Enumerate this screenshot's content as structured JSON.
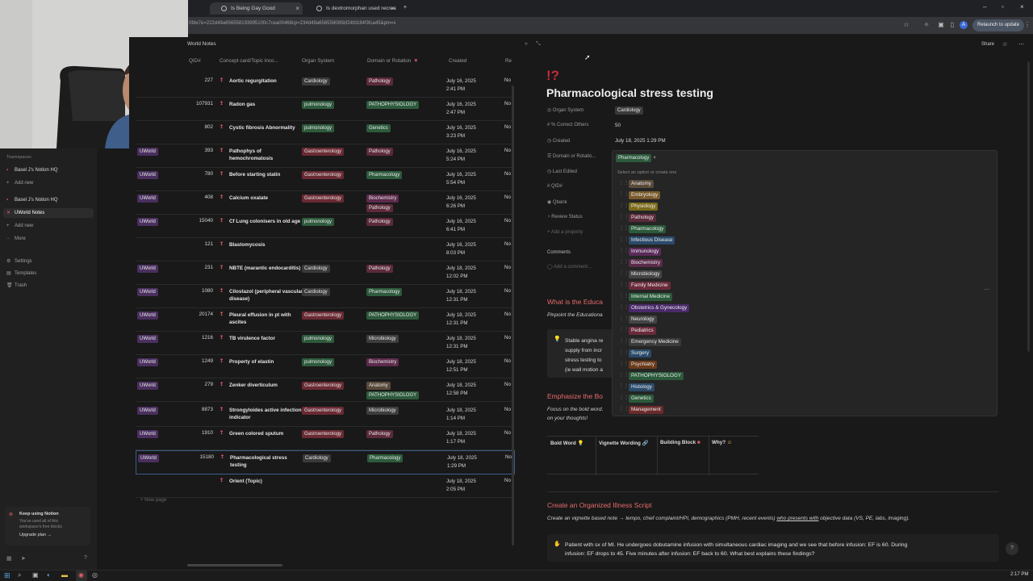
{
  "browser": {
    "tabs": [
      {
        "label": "Is Being Gay Good"
      },
      {
        "label": "Is dextromorphan used recrea"
      }
    ],
    "url": "0fde7e=222d49a656558193995100c7cea00468cp=234d49a656558085bf24fd184f3fca45&pm=s",
    "relaunch_label": "Relaunch to update"
  },
  "sidebar": {
    "teamspaces_heading": "Teamspaces",
    "items": [
      {
        "label": "Basel J's Notion HQ"
      },
      {
        "label": "Add new"
      },
      {
        "label": "Basel J's Notion HQ"
      },
      {
        "label": "UWorld Notes"
      },
      {
        "label": "Add new"
      },
      {
        "label": "More"
      },
      {
        "label": "Settings"
      },
      {
        "label": "Templates"
      },
      {
        "label": "Trash"
      }
    ],
    "upgrade": {
      "title": "Keep using Notion",
      "line1": "You've used all of this",
      "line2": "workspace's free blocks",
      "cta": "Upgrade plan →"
    }
  },
  "table": {
    "title": "World Notes",
    "columns": [
      "QID#",
      "Concept card/Topic Inco...",
      "Organ System",
      "Domain or Rotation",
      "Created",
      "Re"
    ],
    "rows": [
      {
        "source": "",
        "qid": "227",
        "concept": "Aortic regurgitation",
        "organ": "Cardiology",
        "domain": [
          "Pathology"
        ],
        "date1": "July 16, 2025",
        "date2": "2:41 PM",
        "re": "No"
      },
      {
        "source": "",
        "qid": "107931",
        "concept": "Radon gas",
        "organ": "pulmonology",
        "domain": [
          "PATHOPHYSIOLOGY"
        ],
        "date1": "July 16, 2025",
        "date2": "2:47 PM",
        "re": "No"
      },
      {
        "source": "",
        "qid": "802",
        "concept": "Cystic fibrosis Abnormality",
        "organ": "pulmonology",
        "domain": [
          "Genetics"
        ],
        "date1": "July 16, 2025",
        "date2": "3:23 PM",
        "re": "No"
      },
      {
        "source": "UWorld",
        "qid": "393",
        "concept": "Pathophys of hemochromatosis",
        "organ": "Gastroenterology",
        "domain": [
          "Pathology"
        ],
        "date1": "July 16, 2025",
        "date2": "5:24 PM",
        "re": "No"
      },
      {
        "source": "UWorld",
        "qid": "780",
        "concept": "Before starting statin",
        "organ": "Gastroenterology",
        "domain": [
          "Pharmacology"
        ],
        "date1": "July 16, 2025",
        "date2": "5:54 PM",
        "re": "No"
      },
      {
        "source": "UWorld",
        "qid": "408",
        "concept": "Calcium oxalate",
        "organ": "Gastroenterology",
        "domain": [
          "Biochemistry",
          "Pathology"
        ],
        "date1": "July 16, 2025",
        "date2": "6:26 PM",
        "re": "No"
      },
      {
        "source": "UWorld",
        "qid": "15040",
        "concept": "Cf Lung colonisers in old age",
        "organ": "pulmonology",
        "domain": [
          "Pathology"
        ],
        "date1": "July 16, 2025",
        "date2": "6:41 PM",
        "re": "No"
      },
      {
        "source": "",
        "qid": "121",
        "concept": "Blastomycosis",
        "organ": "",
        "domain": [],
        "date1": "July 16, 2025",
        "date2": "8:03 PM",
        "re": "No"
      },
      {
        "source": "UWorld",
        "qid": "231",
        "concept": "NBTE (marantic endocarditis)",
        "organ": "Cardiology",
        "domain": [
          "Pathology"
        ],
        "date1": "July 18, 2025",
        "date2": "12:02 PM",
        "re": "No"
      },
      {
        "source": "UWorld",
        "qid": "1080",
        "concept": "Cilostazol (peripheral vascular disease)",
        "organ": "Cardiology",
        "domain": [
          "Pharmacology"
        ],
        "date1": "July 18, 2025",
        "date2": "12:31 PM",
        "re": "No"
      },
      {
        "source": "UWorld",
        "qid": "20174",
        "concept": "Pleural effusion in pt with ascites",
        "organ": "Gastroenterology",
        "domain": [
          "PATHOPHYSIOLOGY"
        ],
        "date1": "July 18, 2025",
        "date2": "12:31 PM",
        "re": "No"
      },
      {
        "source": "UWorld",
        "qid": "1216",
        "concept": "TB virulence factor",
        "organ": "pulmonology",
        "domain": [
          "Microbiology"
        ],
        "date1": "July 18, 2025",
        "date2": "12:31 PM",
        "re": "No"
      },
      {
        "source": "UWorld",
        "qid": "1249",
        "concept": "Property of elastin",
        "organ": "pulmonology",
        "domain": [
          "Biochemistry"
        ],
        "date1": "July 18, 2025",
        "date2": "12:51 PM",
        "re": "No"
      },
      {
        "source": "UWorld",
        "qid": "279",
        "concept": "Zenker diverticulum",
        "organ": "Gastroenterology",
        "domain": [
          "Anatomy",
          "PATHOPHYSIOLOGY"
        ],
        "date1": "July 18, 2025",
        "date2": "12:58 PM",
        "re": "No"
      },
      {
        "source": "UWorld",
        "qid": "8873",
        "concept": "Strongyloides active infection indicator",
        "organ": "Gastroenterology",
        "domain": [
          "Microbiology"
        ],
        "date1": "July 18, 2025",
        "date2": "1:14 PM",
        "re": "No"
      },
      {
        "source": "UWorld",
        "qid": "1910",
        "concept": "Green colored sputum",
        "organ": "Gastroenterology",
        "domain": [
          "Pathology"
        ],
        "date1": "July 18, 2025",
        "date2": "1:17 PM",
        "re": "No"
      },
      {
        "source": "UWorld",
        "qid": "15180",
        "concept": "Pharmacological stress testing",
        "organ": "Cardiology",
        "domain": [
          "Pharmacology"
        ],
        "date1": "July 18, 2025",
        "date2": "1:29 PM",
        "re": "No"
      },
      {
        "source": "",
        "qid": "",
        "concept": "Orient (Topic)",
        "organ": "",
        "domain": [],
        "date1": "July 18, 2025",
        "date2": "2:05 PM",
        "re": "No"
      }
    ],
    "new_page_label": "New page"
  },
  "page": {
    "topbar": {
      "share": "Share"
    },
    "icon": "!?",
    "title": "Pharmacological stress testing",
    "properties": [
      {
        "label": "Organ System",
        "value": "Cardiology"
      },
      {
        "label": "% Correct Others",
        "value": "50"
      },
      {
        "label": "Created",
        "value": "July 18, 2025 1:29 PM"
      },
      {
        "label": "Domain or Rotatio...",
        "value": "Pharmacology"
      },
      {
        "label": "Last Edited",
        "value": ""
      },
      {
        "label": "QID#",
        "value": ""
      },
      {
        "label": "Qbank",
        "value": ""
      },
      {
        "label": "Review Status",
        "value": ""
      }
    ],
    "add_property": "Add a property",
    "comments_label": "Comments",
    "add_comment": "Add a comment...",
    "dropdown": {
      "selected": "Pharmacology",
      "hint": "Select an option or create one",
      "options": [
        {
          "label": "Anatomy",
          "color": "#5a4a3a"
        },
        {
          "label": "Embryology",
          "color": "#7a5a2a"
        },
        {
          "label": "Physiology",
          "color": "#7a6a1a"
        },
        {
          "label": "Pathology",
          "color": "#5a2a3a"
        },
        {
          "label": "Pharmacology",
          "color": "#2a5a3a"
        },
        {
          "label": "Infectious Disease",
          "color": "#2a4a6a"
        },
        {
          "label": "Immunology",
          "color": "#5a2a5a"
        },
        {
          "label": "Biochemistry",
          "color": "#5a2a4a"
        },
        {
          "label": "Microbiology",
          "color": "#444444"
        },
        {
          "label": "Family Medicine",
          "color": "#6a2a3a"
        },
        {
          "label": "Internal Medicine",
          "color": "#2a5a3a"
        },
        {
          "label": "Obstetrics & Gynecology",
          "color": "#4a2a6a"
        },
        {
          "label": "Neurology",
          "color": "#444444"
        },
        {
          "label": "Pediatrics",
          "color": "#6a2a3a"
        },
        {
          "label": "Emergency Medicine",
          "color": "#3a3a3a"
        },
        {
          "label": "Surgery",
          "color": "#2a4a6a"
        },
        {
          "label": "Psychiatry",
          "color": "#6a3a1a"
        },
        {
          "label": "PATHOPHYSIOLOGY",
          "color": "#2a5a3a"
        },
        {
          "label": "Histology",
          "color": "#2a4a6a"
        },
        {
          "label": "Genetics",
          "color": "#2a5a3a"
        },
        {
          "label": "Management",
          "color": "#6a2a2a"
        }
      ]
    },
    "section1": {
      "heading": "What is the Educa",
      "sub": "Pinpoint the Educationa"
    },
    "callout": {
      "line1": "Stable angina re",
      "line2": "supply from incr",
      "line3": "stress testing to",
      "line4": "(ie wall motion a"
    },
    "section2": {
      "heading": "Emphasize the Bo",
      "sub1": "Focus on the bold word.",
      "sub2": "on your thoughts!"
    },
    "mini_table": {
      "headers": [
        "Bold Word",
        "Vignette Wording",
        "Building Block",
        "Why?"
      ]
    },
    "section3": {
      "heading": "Create an Organized Illness Script",
      "sub_prefix": "Create an vignette based note → tempo, chief complaint/HPI, demographics (PMH, recent events) ",
      "sub_link": "who presents with",
      "sub_suffix": " objective data (VS, PE, labs, imaging)."
    },
    "vignette": {
      "line1": "Patient with sx of MI. He undergoes dobutamine infusion with simultaneous cardiac imaging and we see that before infusion: EF is 60. During",
      "line2": "infusion: EF drops to 45. Five minutes after infusion: EF back to 60. What best explains these findings?"
    }
  },
  "taskbar": {
    "time": "2:17 PM"
  },
  "colors": {
    "cardiology_tag": "#3a3a3a",
    "pulmonology_tag": "#2d5a3c",
    "gastro_tag": "#6a2a33",
    "pathology_tag": "#5c2a3a",
    "pathophys_tag": "#2d5a3c",
    "genetics_tag": "#2d5a3c",
    "pharmacology_tag": "#2d5a3c",
    "biochem_tag": "#5c2a4c",
    "micro_tag": "#3d3d3d",
    "anatomy_tag": "#5a4a3a",
    "uworld_tag": "#4a2f5f"
  }
}
